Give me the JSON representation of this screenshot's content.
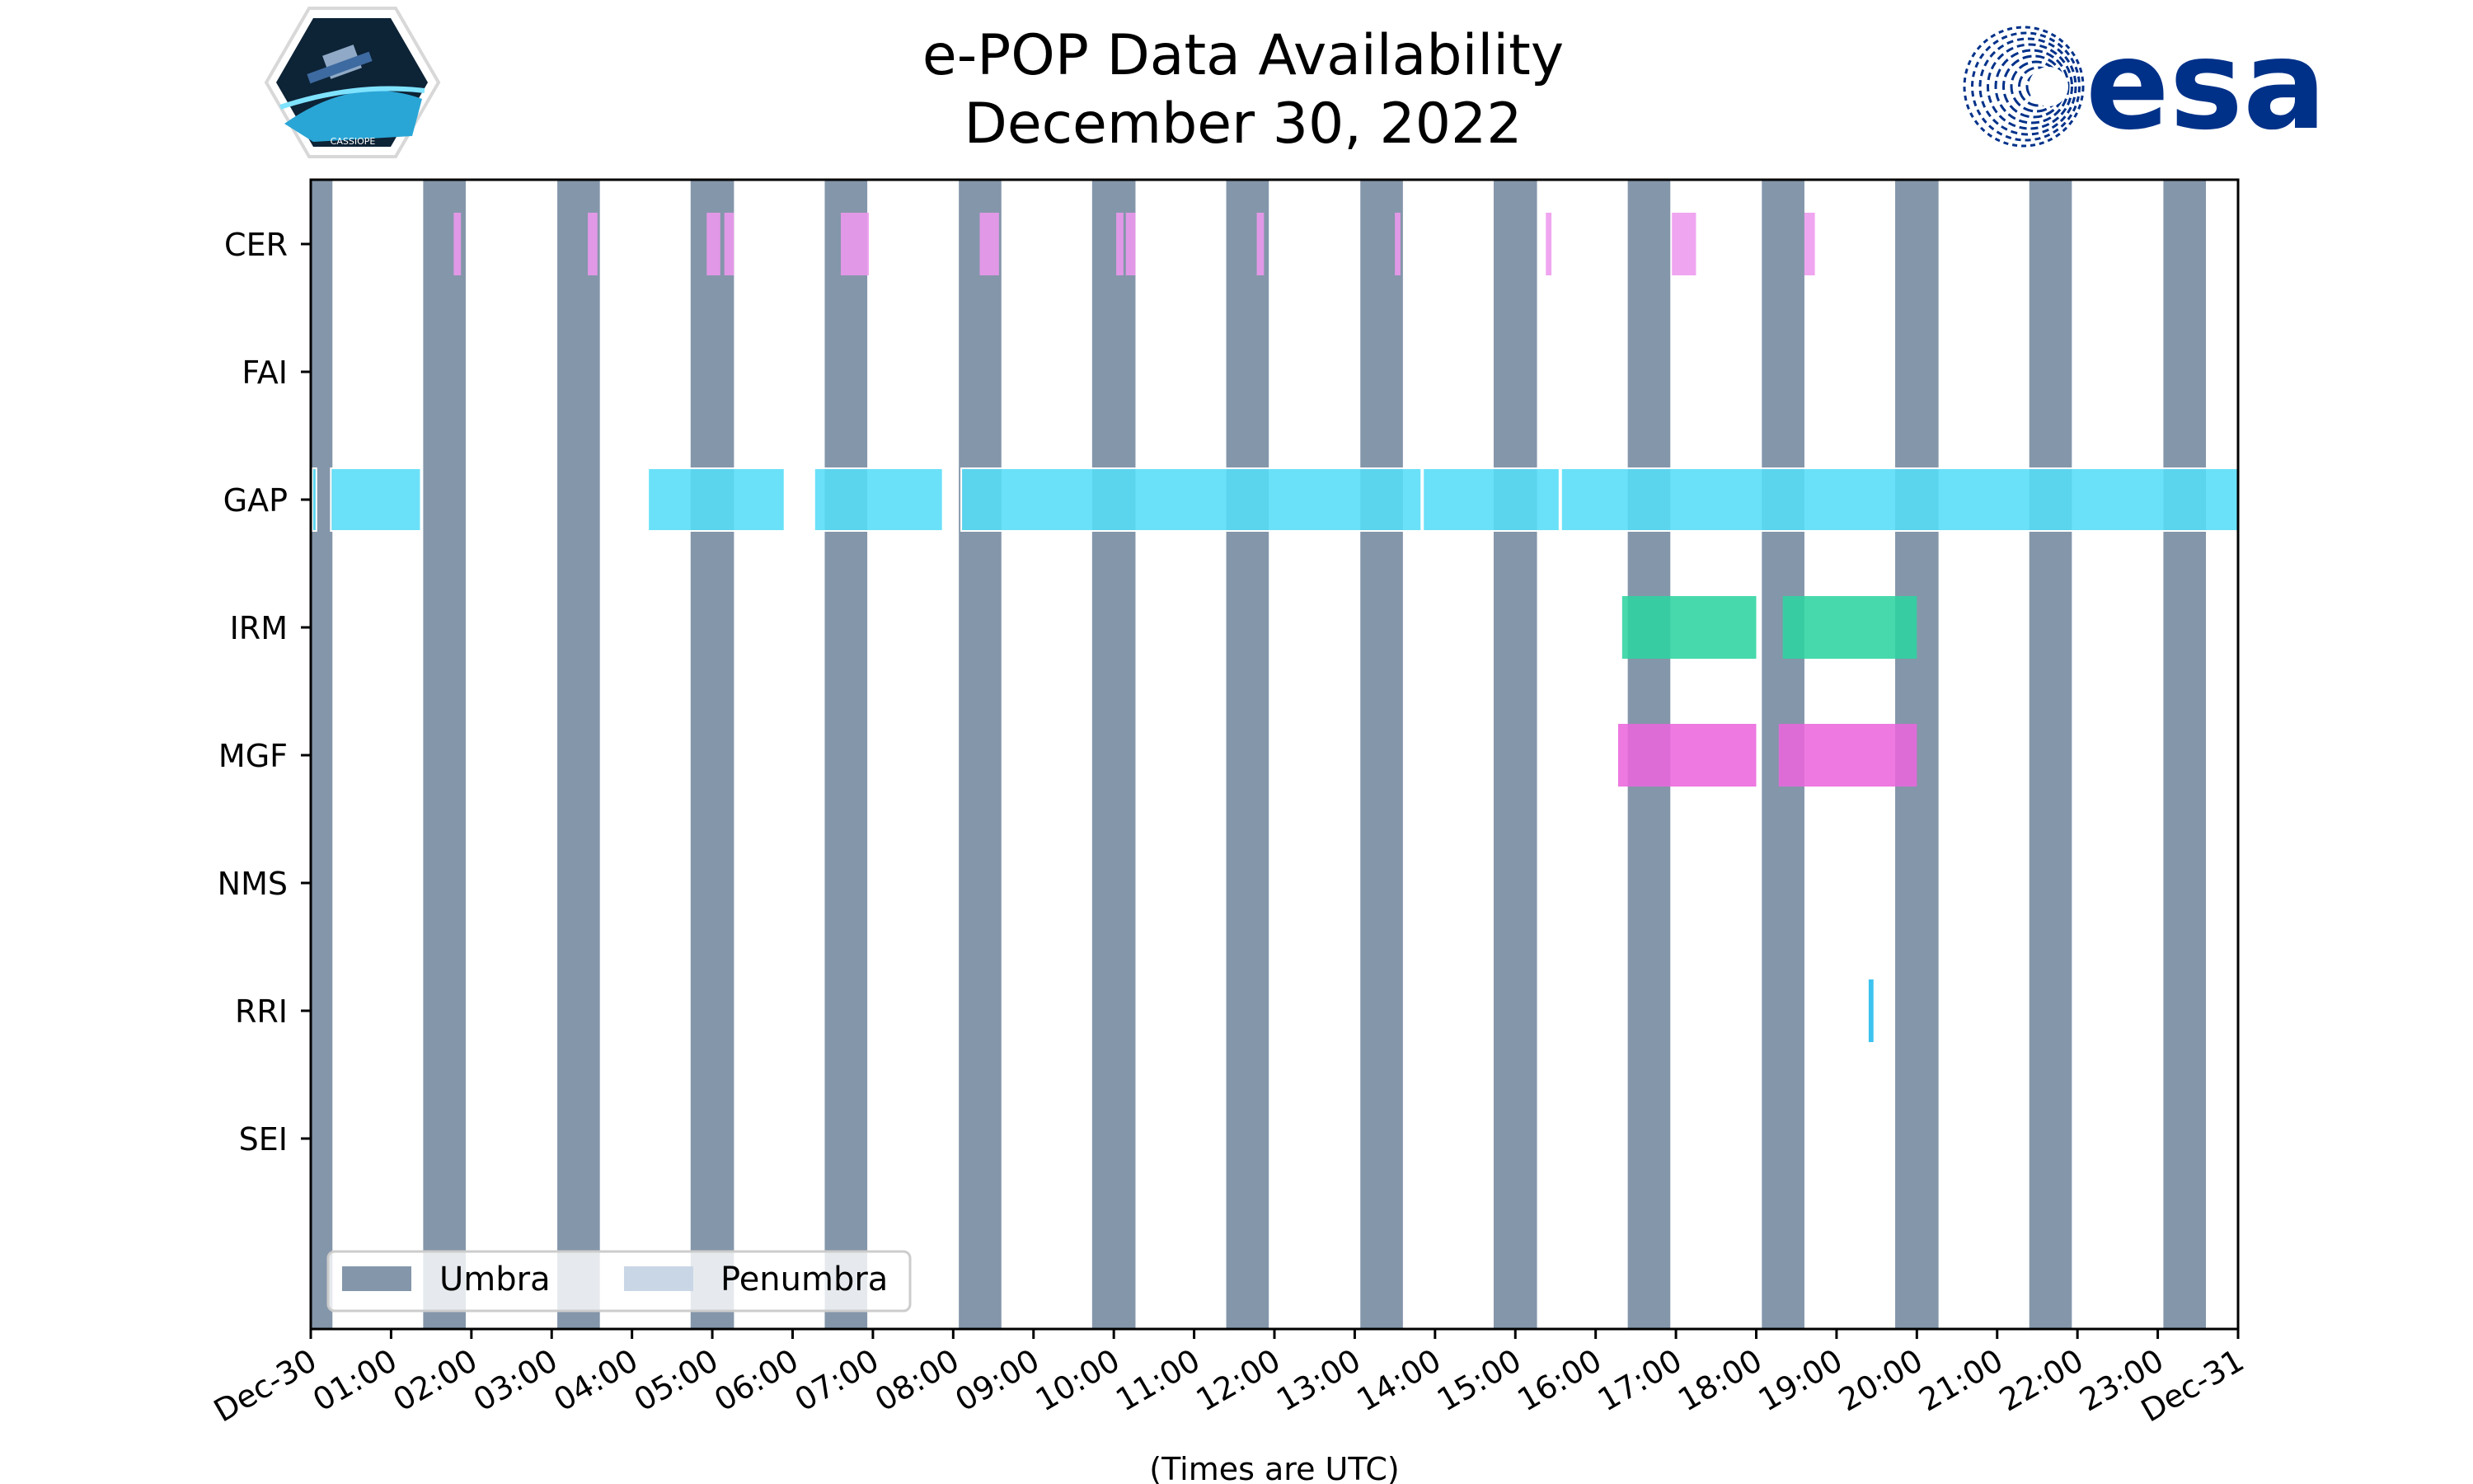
{
  "chart_data": {
    "type": "timeline",
    "title": "e-POP Data Availability",
    "subtitle": "December 30, 2022",
    "xlabel": "(Times are UTC)",
    "xlim": [
      0,
      24
    ],
    "x_tick_labels": [
      "Dec-30",
      "01:00",
      "02:00",
      "03:00",
      "04:00",
      "05:00",
      "06:00",
      "07:00",
      "08:00",
      "09:00",
      "10:00",
      "11:00",
      "12:00",
      "13:00",
      "14:00",
      "15:00",
      "16:00",
      "17:00",
      "18:00",
      "19:00",
      "20:00",
      "21:00",
      "22:00",
      "23:00",
      "Dec-31"
    ],
    "instruments": [
      "CER",
      "FAI",
      "GAP",
      "IRM",
      "MGF",
      "NMS",
      "RRI",
      "SEI"
    ],
    "legend": {
      "placement": "lower-left",
      "entries": [
        {
          "label": "Umbra",
          "color": "#8496aa"
        },
        {
          "label": "Penumbra",
          "color": "#c9d6e6"
        }
      ]
    },
    "umbra": [
      [
        0.0,
        0.27
      ],
      [
        1.4,
        1.93
      ],
      [
        3.07,
        3.6
      ],
      [
        4.73,
        5.27
      ],
      [
        6.4,
        6.93
      ],
      [
        8.07,
        8.6
      ],
      [
        9.73,
        10.27
      ],
      [
        11.4,
        11.93
      ],
      [
        13.07,
        13.6
      ],
      [
        14.73,
        15.27
      ],
      [
        16.4,
        16.93
      ],
      [
        18.07,
        18.6
      ],
      [
        19.73,
        20.27
      ],
      [
        21.4,
        21.93
      ],
      [
        23.07,
        23.6
      ]
    ],
    "series": [
      {
        "name": "CER",
        "color": "#ee99ee",
        "intervals": [
          [
            1.78,
            1.87
          ],
          [
            3.45,
            3.57
          ],
          [
            4.93,
            5.1
          ],
          [
            5.15,
            5.27
          ],
          [
            6.6,
            6.95
          ],
          [
            8.33,
            8.57
          ],
          [
            10.03,
            10.12
          ],
          [
            10.15,
            10.27
          ],
          [
            11.78,
            11.87
          ],
          [
            13.5,
            13.57
          ],
          [
            15.38,
            15.45
          ],
          [
            16.95,
            17.25
          ],
          [
            18.6,
            18.73
          ]
        ]
      },
      {
        "name": "FAI",
        "color": "#ee99ee",
        "intervals": []
      },
      {
        "name": "GAP",
        "color": "#55ddf7",
        "intervals": [
          [
            0.02,
            0.07
          ],
          [
            0.25,
            1.37
          ],
          [
            4.2,
            5.9
          ],
          [
            6.27,
            7.87
          ],
          [
            8.1,
            13.83
          ],
          [
            13.85,
            15.55
          ],
          [
            15.57,
            24.0
          ]
        ]
      },
      {
        "name": "IRM",
        "color": "#2dd4a0",
        "intervals": [
          [
            16.33,
            18.0
          ],
          [
            18.33,
            20.0
          ]
        ]
      },
      {
        "name": "MGF",
        "color": "#ea66dd",
        "intervals": [
          [
            16.28,
            18.0
          ],
          [
            18.28,
            20.0
          ]
        ]
      },
      {
        "name": "NMS",
        "color": "#ee99ee",
        "intervals": []
      },
      {
        "name": "RRI",
        "color": "#22bbee",
        "intervals": [
          [
            19.4,
            19.46
          ]
        ]
      },
      {
        "name": "SEI",
        "color": "#ee99ee",
        "intervals": []
      }
    ]
  },
  "logos": {
    "mission_badge_text": "CASSIOPE",
    "agency_text": "esa"
  }
}
